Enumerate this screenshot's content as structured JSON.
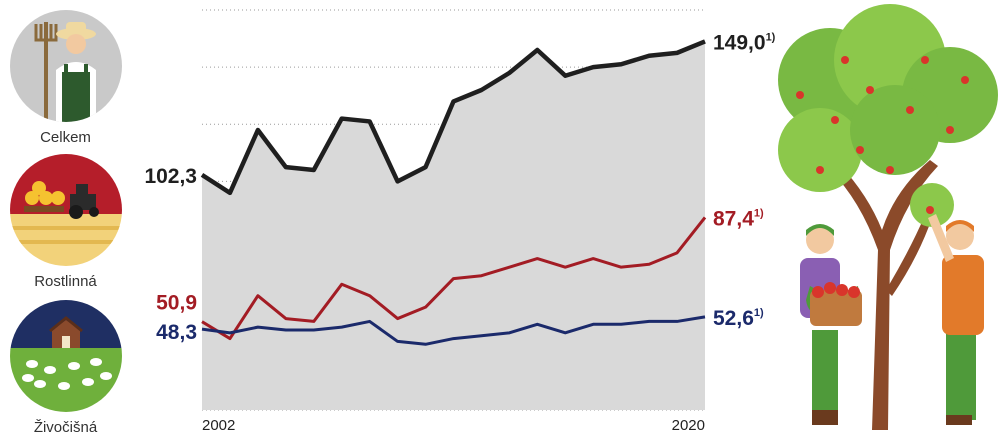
{
  "legend": [
    {
      "label": "Celkem",
      "icon": "farmer-icon"
    },
    {
      "label": "Rostlinná",
      "icon": "tractor-hay-icon"
    },
    {
      "label": "Živočišná",
      "icon": "barn-sheep-icon"
    }
  ],
  "chart_data": {
    "type": "line",
    "x": [
      2002,
      2003,
      2004,
      2005,
      2006,
      2007,
      2008,
      2009,
      2010,
      2011,
      2012,
      2013,
      2014,
      2015,
      2016,
      2017,
      2018,
      2019,
      2020
    ],
    "xticks": [
      "2002",
      "2020"
    ],
    "ylim": [
      20,
      160
    ],
    "grid": "horizontal dotted",
    "series": [
      {
        "key": "celkem",
        "color": "#1f1f1f",
        "values": [
          102.3,
          96,
          118,
          105,
          104,
          122,
          121,
          100,
          105,
          128,
          132,
          138,
          146,
          137,
          140,
          141,
          144,
          145,
          149.0
        ],
        "start_label": "102,3",
        "end_label": "149,0",
        "end_note": "1)"
      },
      {
        "key": "rostlinna",
        "color": "#a31c24",
        "values": [
          50.9,
          45,
          60,
          52,
          51,
          64,
          60,
          52,
          56,
          66,
          67,
          70,
          73,
          70,
          73,
          70,
          71,
          75,
          87.4
        ],
        "start_label": "50,9",
        "end_label": "87,4",
        "end_note": "1)"
      },
      {
        "key": "zivocisna",
        "color": "#1b2a6b",
        "values": [
          48.3,
          47,
          49,
          48,
          48,
          49,
          51,
          44,
          43,
          45,
          46,
          47,
          50,
          47,
          50,
          50,
          51,
          51,
          52.6
        ],
        "start_label": "48,3",
        "end_label": "52,6",
        "end_note": "1)"
      }
    ]
  }
}
